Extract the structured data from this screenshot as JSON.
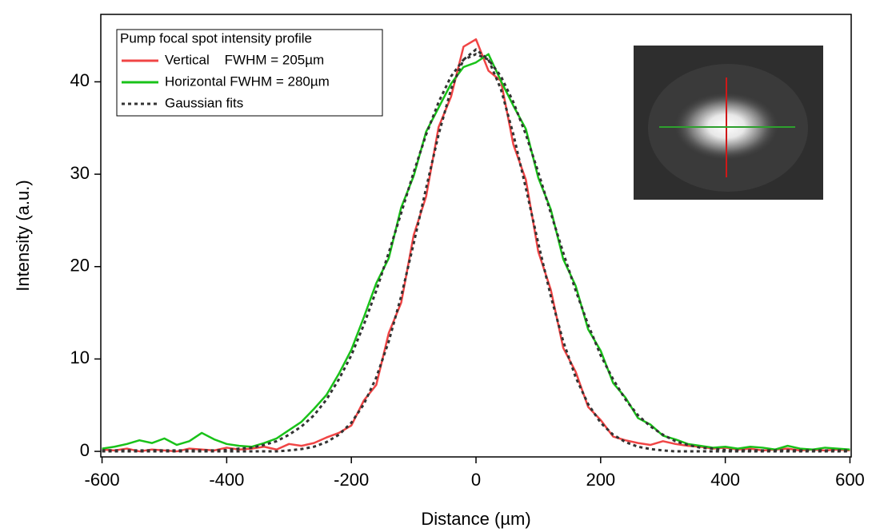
{
  "chart_data": {
    "type": "line",
    "x_label": "Distance (µm)",
    "y_label": "Intensity (a.u.)",
    "legend_title": "Pump focal spot intensity profile",
    "legend": "upper left",
    "xlim": [
      -602,
      602
    ],
    "ylim": [
      -0.6,
      47.3
    ],
    "xticks": [
      -600,
      -400,
      -200,
      0,
      200,
      400,
      600
    ],
    "yticks": [
      0,
      10,
      20,
      30,
      40
    ],
    "x": [
      -600,
      -580,
      -560,
      -540,
      -520,
      -500,
      -480,
      -460,
      -440,
      -420,
      -400,
      -380,
      -360,
      -340,
      -320,
      -300,
      -280,
      -260,
      -240,
      -220,
      -200,
      -180,
      -160,
      -140,
      -120,
      -100,
      -80,
      -60,
      -40,
      -20,
      0,
      20,
      40,
      60,
      80,
      100,
      120,
      140,
      160,
      180,
      200,
      220,
      240,
      260,
      280,
      300,
      320,
      340,
      360,
      380,
      400,
      420,
      440,
      460,
      480,
      500,
      520,
      540,
      560,
      580,
      600
    ],
    "series": [
      {
        "name": "Vertical    FWHM = 205µm",
        "color": "#f04545",
        "values": [
          0.2,
          0.1,
          0.3,
          0,
          0.2,
          0.1,
          0,
          0.3,
          0.2,
          0.1,
          0.4,
          0.2,
          0.3,
          0.5,
          0.2,
          0.8,
          0.6,
          0.9,
          1.5,
          2.0,
          2.8,
          5.5,
          7.2,
          12.8,
          16.1,
          23.4,
          27.6,
          35.1,
          38.4,
          43.8,
          44.6,
          41.2,
          40.1,
          33.2,
          29.4,
          21.6,
          17.5,
          11.2,
          8.6,
          4.8,
          3.4,
          1.6,
          1.2,
          0.9,
          0.7,
          1.1,
          0.8,
          0.6,
          0.5,
          0.3,
          0.4,
          0.2,
          0.3,
          0.1,
          0.2,
          0.3,
          0.1,
          0.2,
          0.1,
          0.2,
          0.1
        ]
      },
      {
        "name": "Horizontal FWHM = 280µm",
        "color": "#19c219",
        "values": [
          0.3,
          0.5,
          0.8,
          1.2,
          0.9,
          1.4,
          0.7,
          1.1,
          2.0,
          1.3,
          0.8,
          0.6,
          0.5,
          0.9,
          1.4,
          2.3,
          3.2,
          4.6,
          6.1,
          8.4,
          11.0,
          14.5,
          18.2,
          20.9,
          26.4,
          29.8,
          34.6,
          37.2,
          39.8,
          41.6,
          42.1,
          43.0,
          40.1,
          37.4,
          34.9,
          29.6,
          26.2,
          20.8,
          17.9,
          13.2,
          10.9,
          7.4,
          5.8,
          3.6,
          2.9,
          1.7,
          1.3,
          0.8,
          0.6,
          0.4,
          0.5,
          0.3,
          0.5,
          0.4,
          0.2,
          0.6,
          0.3,
          0.2,
          0.4,
          0.3,
          0.2
        ]
      }
    ],
    "fits": {
      "name": "Gaussian fits",
      "color": "#333333",
      "curves": [
        [
          0,
          0,
          0,
          0,
          0,
          0,
          0,
          0,
          0,
          0,
          0,
          0,
          0,
          0,
          0,
          0.1,
          0.25,
          0.5,
          1.0,
          1.8,
          3.1,
          5.1,
          8.0,
          11.9,
          16.8,
          22.5,
          28.5,
          34.3,
          39.2,
          42.4,
          43.5,
          42.4,
          39.2,
          34.3,
          28.5,
          22.5,
          16.8,
          11.9,
          8.0,
          5.1,
          3.1,
          1.8,
          1.0,
          0.5,
          0.25,
          0.1,
          0,
          0,
          0,
          0,
          0,
          0,
          0,
          0,
          0,
          0,
          0,
          0,
          0,
          0,
          0
        ],
        [
          0.1,
          0.1,
          0.1,
          0.1,
          0.1,
          0.1,
          0.1,
          0.1,
          0.1,
          0.1,
          0.15,
          0.3,
          0.4,
          0.7,
          1.1,
          1.8,
          2.7,
          3.9,
          5.6,
          7.8,
          10.4,
          13.7,
          17.4,
          21.5,
          25.8,
          30.2,
          34.3,
          37.8,
          40.6,
          42.4,
          43,
          42.4,
          40.6,
          37.8,
          34.3,
          30.2,
          25.8,
          21.5,
          17.4,
          13.7,
          10.4,
          7.8,
          5.6,
          3.9,
          2.7,
          1.8,
          1.1,
          0.7,
          0.4,
          0.3,
          0.15,
          0.1,
          0.1,
          0.1,
          0.1,
          0.1,
          0.1,
          0.1,
          0.1,
          0.1,
          0.1
        ]
      ]
    }
  }
}
